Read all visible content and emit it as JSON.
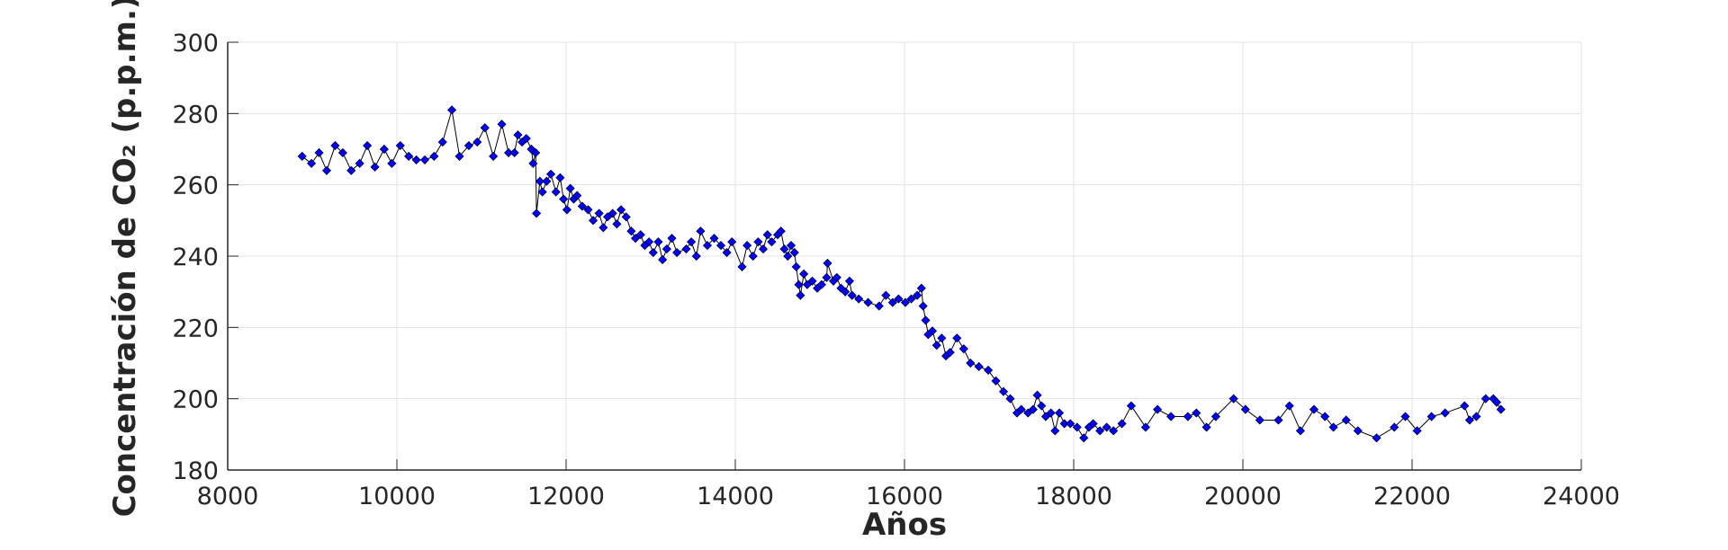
{
  "chart_data": {
    "type": "line",
    "xlabel": "Años",
    "ylabel": "Concentración de CO₂ (p.p.m.)",
    "x": [
      8880,
      8990,
      9080,
      9170,
      9270,
      9360,
      9460,
      9560,
      9650,
      9740,
      9850,
      9940,
      10040,
      10140,
      10230,
      10330,
      10440,
      10540,
      10650,
      10740,
      10850,
      10950,
      11040,
      11140,
      11240,
      11320,
      11390,
      11430,
      11480,
      11530,
      11590,
      11610,
      11640,
      11650,
      11690,
      11720,
      11770,
      11820,
      11880,
      11930,
      11970,
      12010,
      12050,
      12090,
      12130,
      12190,
      12260,
      12320,
      12390,
      12440,
      12490,
      12550,
      12600,
      12650,
      12710,
      12770,
      12820,
      12880,
      12930,
      12980,
      13030,
      13090,
      13140,
      13190,
      13250,
      13310,
      13420,
      13480,
      13540,
      13590,
      13670,
      13750,
      13830,
      13900,
      13960,
      14080,
      14140,
      14210,
      14270,
      14330,
      14380,
      14430,
      14500,
      14540,
      14580,
      14620,
      14660,
      14700,
      14720,
      14750,
      14770,
      14810,
      14850,
      14910,
      14970,
      15020,
      15080,
      15090,
      15160,
      15200,
      15250,
      15300,
      15350,
      15380,
      15460,
      15570,
      15700,
      15780,
      15860,
      15930,
      16010,
      16080,
      16150,
      16200,
      16220,
      16250,
      16280,
      16330,
      16380,
      16440,
      16490,
      16540,
      16620,
      16700,
      16780,
      16880,
      16990,
      17080,
      17170,
      17250,
      17330,
      17380,
      17460,
      17520,
      17570,
      17620,
      17670,
      17730,
      17780,
      17830,
      17890,
      17960,
      18040,
      18120,
      18180,
      18230,
      18310,
      18390,
      18470,
      18570,
      18680,
      18850,
      18990,
      19150,
      19350,
      19450,
      19570,
      19680,
      19890,
      20030,
      20200,
      20420,
      20550,
      20680,
      20840,
      20970,
      21070,
      21220,
      21360,
      21580,
      21790,
      21920,
      22060,
      22230,
      22390,
      22620,
      22680,
      22760,
      22870,
      22960,
      23000,
      23050
    ],
    "series": [
      {
        "color": "#0000ff",
        "values": [
          268,
          266,
          269,
          264,
          271,
          269,
          264,
          266,
          271,
          265,
          270,
          266,
          271,
          268,
          267,
          267,
          268,
          272,
          281,
          268,
          271,
          272,
          276,
          268,
          277,
          269,
          269,
          274,
          272,
          273,
          270,
          266,
          269,
          252,
          261,
          258,
          261,
          263,
          258,
          262,
          256,
          253,
          259,
          256,
          257,
          254,
          253,
          250,
          252,
          248,
          251,
          252,
          249,
          253,
          251,
          247,
          245,
          246,
          243,
          244,
          241,
          244,
          239,
          242,
          245,
          241,
          242,
          244,
          240,
          247,
          243,
          245,
          243,
          241,
          244,
          237,
          243,
          240,
          244,
          242,
          246,
          244,
          246,
          247,
          242,
          240,
          243,
          241,
          237,
          232,
          229,
          235,
          232,
          233,
          231,
          232,
          234,
          238,
          233,
          234,
          231,
          230,
          233,
          229,
          228,
          227,
          226,
          229,
          227,
          228,
          227,
          228,
          229,
          231,
          226,
          222,
          218,
          219,
          215,
          217,
          212,
          213,
          217,
          214,
          210,
          209,
          208,
          205,
          202,
          200,
          196,
          197,
          196,
          197,
          201,
          198,
          195,
          196,
          191,
          196,
          193,
          193,
          192,
          189,
          192,
          193,
          191,
          192,
          191,
          193,
          198,
          192,
          197,
          195,
          195,
          196,
          192,
          195,
          200,
          197,
          194,
          194,
          198,
          191,
          197,
          195,
          192,
          194,
          191,
          189,
          192,
          195,
          191,
          195,
          196,
          198,
          194,
          195,
          200,
          200,
          199,
          197
        ]
      }
    ],
    "line_color": "#000000",
    "xlim": [
      8000,
      24000
    ],
    "xticks": [
      8000,
      10000,
      12000,
      14000,
      16000,
      18000,
      20000,
      22000,
      24000
    ],
    "ylim": [
      180,
      300
    ],
    "yticks": [
      180,
      200,
      220,
      240,
      260,
      280,
      300
    ],
    "grid": true
  }
}
